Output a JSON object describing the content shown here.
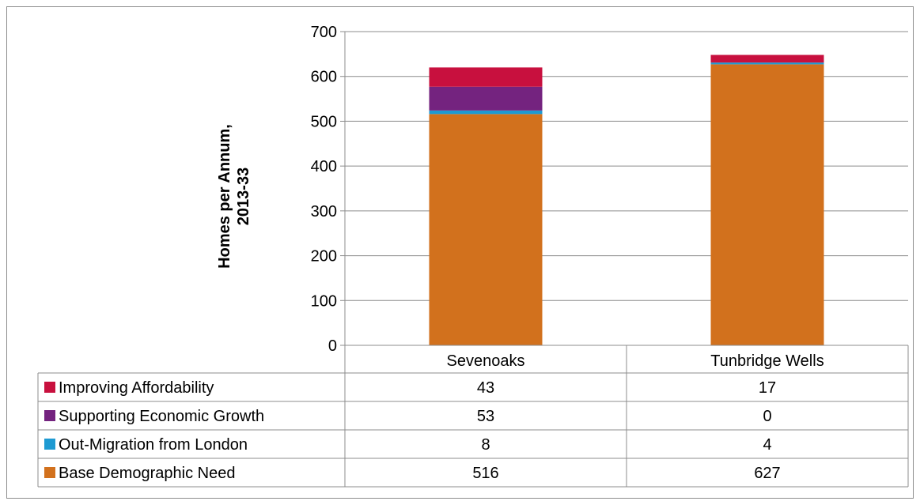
{
  "chart_data": {
    "type": "bar",
    "stacked": true,
    "categories": [
      "Sevenoaks",
      "Tunbridge Wells"
    ],
    "series": [
      {
        "name": "Base Demographic Need",
        "values": [
          516,
          627
        ],
        "color": "#D2711D"
      },
      {
        "name": "Out-Migration from London",
        "values": [
          8,
          4
        ],
        "color": "#1E9AD2"
      },
      {
        "name": "Supporting Economic Growth",
        "values": [
          53,
          0
        ],
        "color": "#74237F"
      },
      {
        "name": "Improving Affordability",
        "values": [
          43,
          17
        ],
        "color": "#C8103E"
      }
    ],
    "title": "",
    "xlabel": "",
    "ylabel": "Homes per Annum, 2013-33",
    "ylabel_lines": [
      "Homes per Annum,",
      "2013-33"
    ],
    "ylim": [
      0,
      700
    ],
    "yticks": [
      0,
      100,
      200,
      300,
      400,
      500,
      600,
      700
    ],
    "grid": true,
    "legend": "data table below chart"
  }
}
